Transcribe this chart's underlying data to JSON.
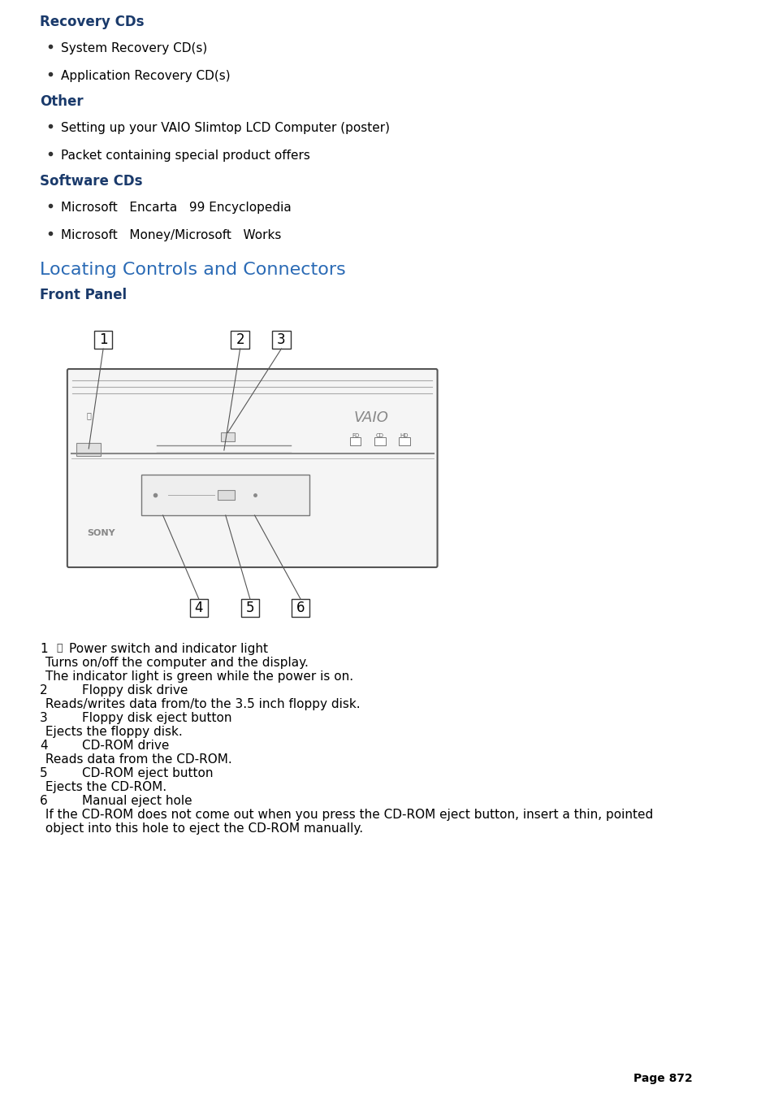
{
  "bg_color": "#ffffff",
  "dark_blue": "#1a3a6b",
  "text_color": "#000000",
  "section_header_color": "#1a3a6b",
  "locating_title": "Locating Controls and Connectors",
  "locating_title_color": "#2a6ab5",
  "front_panel_label": "Front Panel",
  "front_panel_label_color": "#1a3a6b",
  "bullet_items": [
    [
      "System Recovery CD(s)",
      "Application Recovery CD(s)"
    ],
    [
      "Setting up your VAIO Slimtop LCD Computer (poster)",
      "Packet containing special product offers"
    ],
    [
      "Microsoft   Encarta   99 Encyclopedia",
      "Microsoft   Money/Microsoft   Works"
    ]
  ],
  "page_number": "Page 872"
}
